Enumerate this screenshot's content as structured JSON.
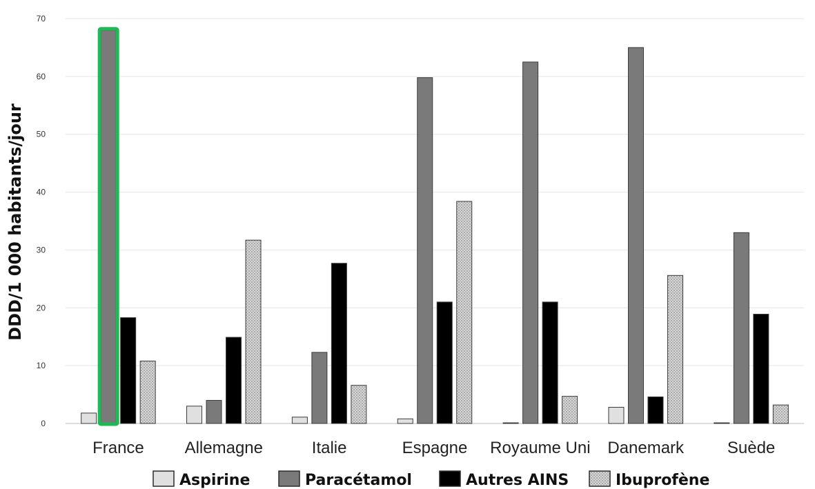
{
  "chart_data": {
    "type": "bar",
    "ylabel": "DDD/1 000 habitants/jour",
    "ylim": [
      0,
      70
    ],
    "yticks": [
      "0",
      "10",
      "20",
      "30",
      "40",
      "50",
      "60",
      "70"
    ],
    "grid": true,
    "legend_position": "bottom",
    "categories": [
      "France",
      "Allemagne",
      "Italie",
      "Espagne",
      "Royaume Uni",
      "Danemark",
      "Suède"
    ],
    "series": [
      {
        "name": "Aspirine",
        "color": "#e0e0e0",
        "pattern": "light",
        "values": [
          1.8,
          3.0,
          1.1,
          0.8,
          0.1,
          2.8,
          0.1
        ]
      },
      {
        "name": "Paracétamol",
        "color": "#7a7a7a",
        "pattern": "solid",
        "values": [
          68.0,
          4.0,
          12.3,
          59.8,
          62.5,
          65.0,
          33.0
        ]
      },
      {
        "name": "Autres AINS",
        "color": "#000000",
        "pattern": "solid",
        "values": [
          18.3,
          14.9,
          27.7,
          21.0,
          21.0,
          4.6,
          18.9
        ]
      },
      {
        "name": "Ibuprofène",
        "color": "#c4c4c4",
        "pattern": "dotted",
        "values": [
          10.8,
          31.7,
          6.6,
          38.4,
          4.7,
          25.6,
          3.2
        ]
      }
    ],
    "highlight": {
      "category": "France",
      "series": "Paracétamol",
      "color": "#1db954"
    }
  }
}
